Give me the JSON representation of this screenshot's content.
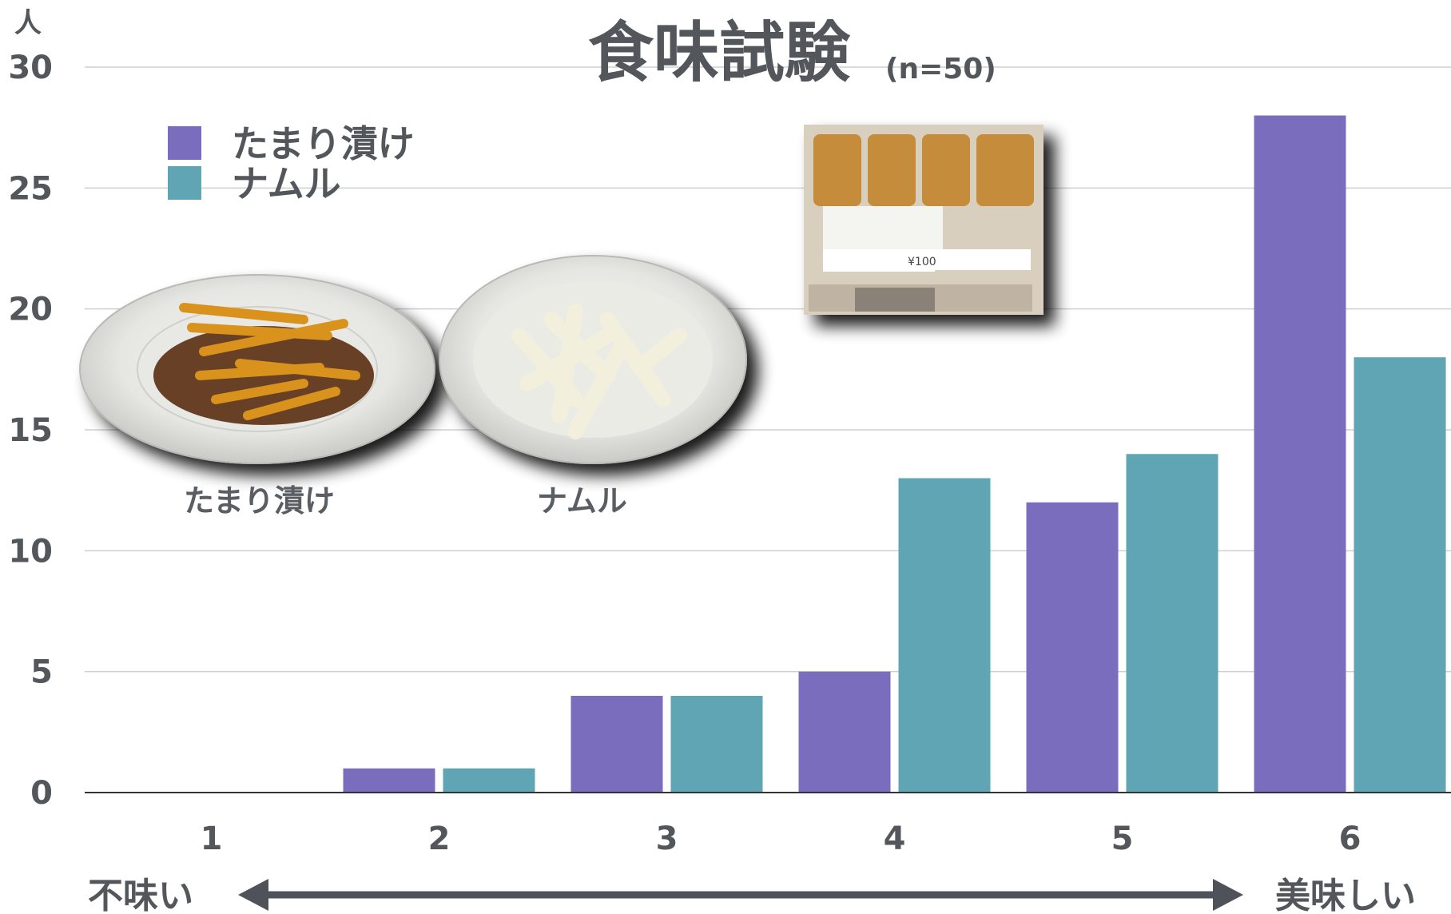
{
  "chart_data": {
    "type": "bar",
    "title": "食味試験",
    "subtitle": "(n=50)",
    "ylabel": "人",
    "ylim": [
      0,
      30
    ],
    "yticks": [
      0,
      5,
      10,
      15,
      20,
      25,
      30
    ],
    "grid": true,
    "legend_position": "top-left",
    "categories": [
      "1",
      "2",
      "3",
      "4",
      "5",
      "6"
    ],
    "series": [
      {
        "name": "たまり漬け",
        "color": "#7b6dbd",
        "values": [
          0,
          1,
          4,
          5,
          12,
          28
        ]
      },
      {
        "name": "ナムル",
        "color": "#5fa5b4",
        "values": [
          0,
          1,
          4,
          13,
          14,
          18
        ]
      }
    ],
    "scale_left_label": "不味い",
    "scale_right_label": "美味しい"
  },
  "photos": {
    "left_label": "たまり漬け",
    "middle_label": "ナムル",
    "package_price": "¥100"
  }
}
